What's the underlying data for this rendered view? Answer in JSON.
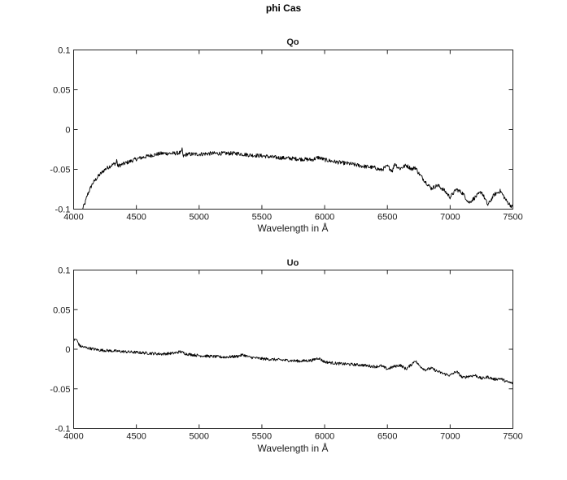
{
  "figure": {
    "title": "phi Cas"
  },
  "chart_data": [
    {
      "type": "line",
      "title": "Qo",
      "xlabel": "Wavelength in Å",
      "ylabel": "",
      "xlim": [
        4000,
        7500
      ],
      "ylim": [
        -0.1,
        0.1
      ],
      "x_ticks": [
        4000,
        4500,
        5000,
        5500,
        6000,
        6500,
        7000,
        7500
      ],
      "y_ticks": [
        -0.1,
        -0.05,
        0,
        0.05,
        0.1
      ],
      "x_tick_labels": [
        "4000",
        "4500",
        "5000",
        "5500",
        "6000",
        "6500",
        "7000",
        "7500"
      ],
      "y_tick_labels": [
        "-0.1",
        "-0.05",
        "0",
        "0.05",
        "0.1"
      ],
      "grid": false,
      "line_color": "#000000",
      "noise_amplitude": 0.0025,
      "series": [
        {
          "x": [
            4070,
            4090,
            4110,
            4150,
            4200,
            4250,
            4300,
            4340,
            4345,
            4350,
            4400,
            4450,
            4500,
            4600,
            4700,
            4800,
            4860,
            4865,
            4870,
            4900,
            5000,
            5100,
            5200,
            5300,
            5400,
            5500,
            5600,
            5700,
            5800,
            5900,
            5950,
            6000,
            6100,
            6200,
            6300,
            6400,
            6450,
            6500,
            6540,
            6560,
            6580,
            6600,
            6650,
            6700,
            6720,
            6750,
            6800,
            6850,
            6900,
            6950,
            7000,
            7050,
            7100,
            7150,
            7200,
            7250,
            7280,
            7300,
            7350,
            7400,
            7450,
            7480,
            7500
          ],
          "y": [
            -0.1,
            -0.093,
            -0.082,
            -0.068,
            -0.058,
            -0.05,
            -0.045,
            -0.042,
            -0.036,
            -0.046,
            -0.043,
            -0.04,
            -0.037,
            -0.033,
            -0.03,
            -0.03,
            -0.029,
            -0.022,
            -0.034,
            -0.031,
            -0.031,
            -0.03,
            -0.03,
            -0.03,
            -0.032,
            -0.033,
            -0.035,
            -0.036,
            -0.037,
            -0.038,
            -0.035,
            -0.038,
            -0.041,
            -0.043,
            -0.046,
            -0.048,
            -0.051,
            -0.046,
            -0.052,
            -0.042,
            -0.047,
            -0.049,
            -0.045,
            -0.05,
            -0.047,
            -0.055,
            -0.065,
            -0.074,
            -0.07,
            -0.076,
            -0.085,
            -0.075,
            -0.08,
            -0.092,
            -0.085,
            -0.078,
            -0.088,
            -0.095,
            -0.082,
            -0.077,
            -0.09,
            -0.095,
            -0.098
          ]
        }
      ]
    },
    {
      "type": "line",
      "title": "Uo",
      "xlabel": "Wavelength in Å",
      "ylabel": "",
      "xlim": [
        4000,
        7500
      ],
      "ylim": [
        -0.1,
        0.1
      ],
      "x_ticks": [
        4000,
        4500,
        5000,
        5500,
        6000,
        6500,
        7000,
        7500
      ],
      "y_ticks": [
        -0.1,
        -0.05,
        0,
        0.05,
        0.1
      ],
      "x_tick_labels": [
        "4000",
        "4500",
        "5000",
        "5500",
        "6000",
        "6500",
        "7000",
        "7500"
      ],
      "y_tick_labels": [
        "-0.1",
        "-0.05",
        "0",
        "0.05",
        "0.1"
      ],
      "grid": false,
      "line_color": "#000000",
      "noise_amplitude": 0.0018,
      "series": [
        {
          "x": [
            4000,
            4020,
            4050,
            4100,
            4200,
            4300,
            4400,
            4500,
            4600,
            4700,
            4800,
            4850,
            4900,
            5000,
            5100,
            5200,
            5300,
            5350,
            5400,
            5500,
            5600,
            5700,
            5800,
            5900,
            5950,
            6000,
            6100,
            6200,
            6300,
            6400,
            6450,
            6500,
            6550,
            6600,
            6650,
            6700,
            6720,
            6750,
            6800,
            6850,
            6900,
            6950,
            7000,
            7050,
            7100,
            7150,
            7200,
            7250,
            7300,
            7350,
            7400,
            7450,
            7500
          ],
          "y": [
            0.011,
            0.013,
            0.004,
            0.002,
            -0.001,
            -0.002,
            -0.003,
            -0.004,
            -0.005,
            -0.006,
            -0.005,
            -0.003,
            -0.006,
            -0.008,
            -0.009,
            -0.01,
            -0.009,
            -0.007,
            -0.01,
            -0.012,
            -0.013,
            -0.014,
            -0.015,
            -0.014,
            -0.011,
            -0.016,
            -0.018,
            -0.019,
            -0.02,
            -0.022,
            -0.021,
            -0.025,
            -0.022,
            -0.02,
            -0.025,
            -0.018,
            -0.014,
            -0.02,
            -0.026,
            -0.024,
            -0.028,
            -0.031,
            -0.033,
            -0.028,
            -0.036,
            -0.034,
            -0.033,
            -0.037,
            -0.035,
            -0.038,
            -0.037,
            -0.041,
            -0.043
          ]
        }
      ]
    }
  ]
}
